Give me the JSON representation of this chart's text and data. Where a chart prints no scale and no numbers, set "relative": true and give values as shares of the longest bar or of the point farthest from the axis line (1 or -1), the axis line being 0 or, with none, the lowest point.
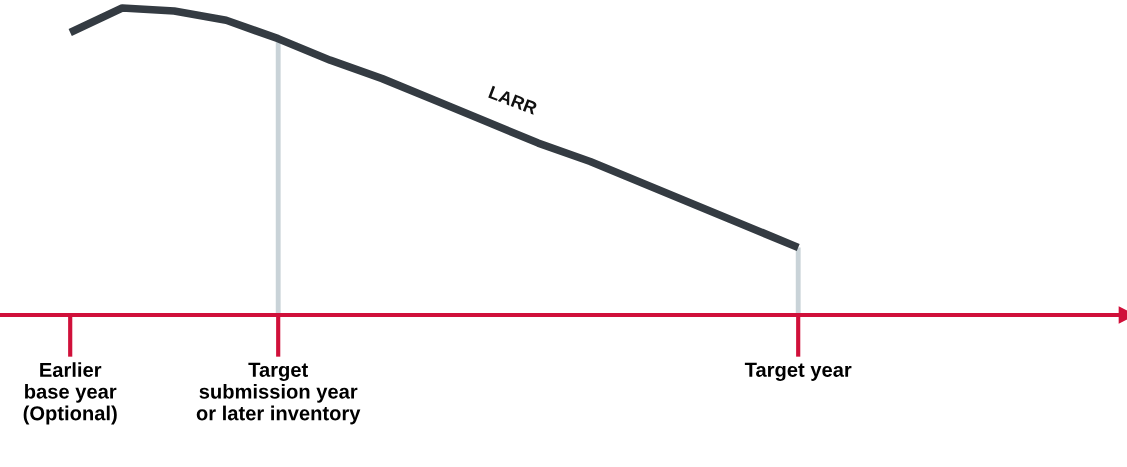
{
  "chart_data": {
    "type": "line",
    "relative": true,
    "categories": [
      "Earlier\nbase year\n(Optional)",
      null,
      null,
      null,
      "Target\nsubmission year\nor later inventory",
      null,
      null,
      null,
      null,
      null,
      null,
      null,
      null,
      null,
      "Target year"
    ],
    "series": [
      {
        "name": "LARR",
        "color": "#343b42",
        "values": [
          0.92,
          1.0,
          0.99,
          0.96,
          0.9,
          0.83,
          0.77,
          0.7,
          0.63,
          0.56,
          0.5,
          0.43,
          0.36,
          0.29,
          0.22
        ]
      }
    ],
    "ref_lines": [
      {
        "axis": "x",
        "value": "Target\nsubmission year\nor later inventory",
        "color": "#c9d3d8"
      },
      {
        "axis": "x",
        "value": "Target year",
        "color": "#c9d3d8"
      }
    ],
    "grid": false,
    "legend": false,
    "marker": "none",
    "line_style": "solid"
  }
}
